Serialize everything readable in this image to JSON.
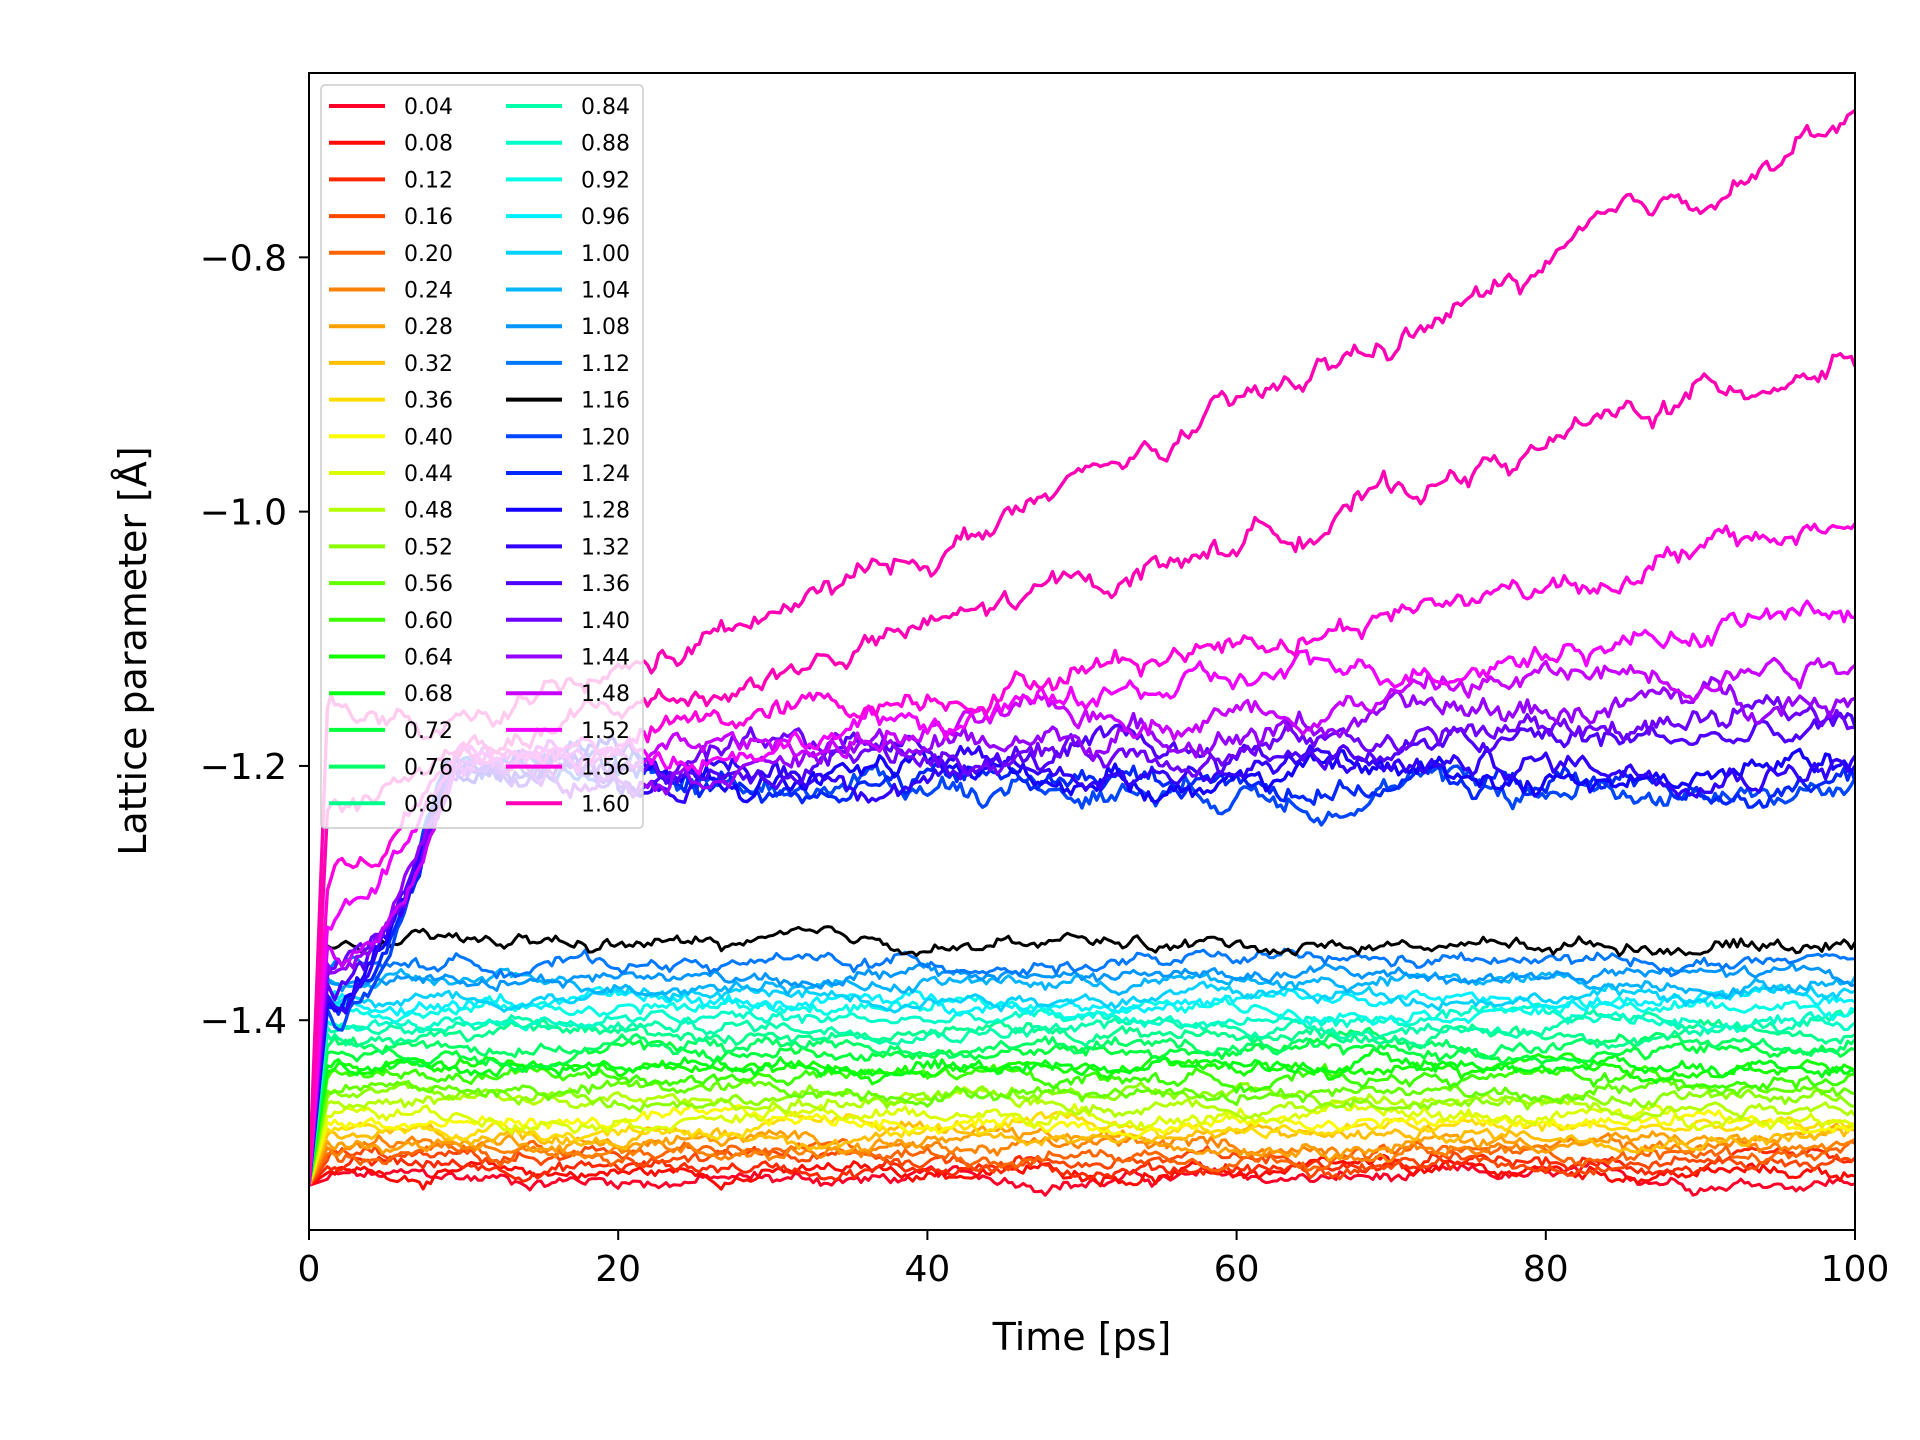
{
  "chart_data": {
    "type": "line",
    "title": "",
    "xlabel": "Time [ps]",
    "ylabel": "Lattice parameter [Å]",
    "xlim": [
      0,
      100
    ],
    "ylim": [
      -1.565,
      -0.655
    ],
    "xticks": [
      0,
      20,
      40,
      60,
      80,
      100
    ],
    "xtick_labels": [
      "0",
      "20",
      "40",
      "60",
      "80",
      "100"
    ],
    "yticks": [
      -1.4,
      -1.2,
      -1.0,
      -0.8
    ],
    "ytick_labels": [
      "−1.4",
      "−1.2",
      "−1.0",
      "−0.8"
    ],
    "grid": false,
    "legend_position": "top-left",
    "legend_columns": 2,
    "series": [
      {
        "name": "0.04",
        "color": "#ff0028",
        "y_start": -1.53,
        "y_end": -1.525
      },
      {
        "name": "0.08",
        "color": "#ff0a00",
        "y_start": -1.53,
        "y_end": -1.52
      },
      {
        "name": "0.12",
        "color": "#ff2800",
        "y_start": -1.53,
        "y_end": -1.515
      },
      {
        "name": "0.16",
        "color": "#ff4600",
        "y_start": -1.53,
        "y_end": -1.51
      },
      {
        "name": "0.20",
        "color": "#ff6400",
        "y_start": -1.53,
        "y_end": -1.505
      },
      {
        "name": "0.24",
        "color": "#ff8200",
        "y_start": -1.53,
        "y_end": -1.5
      },
      {
        "name": "0.28",
        "color": "#ffa000",
        "y_start": -1.53,
        "y_end": -1.495
      },
      {
        "name": "0.32",
        "color": "#ffbe00",
        "y_start": -1.53,
        "y_end": -1.49
      },
      {
        "name": "0.36",
        "color": "#ffdc00",
        "y_start": -1.53,
        "y_end": -1.485
      },
      {
        "name": "0.40",
        "color": "#fafa00",
        "y_start": -1.53,
        "y_end": -1.48
      },
      {
        "name": "0.44",
        "color": "#dcff00",
        "y_start": -1.53,
        "y_end": -1.475
      },
      {
        "name": "0.48",
        "color": "#b4ff00",
        "y_start": -1.53,
        "y_end": -1.465
      },
      {
        "name": "0.52",
        "color": "#8cff00",
        "y_start": -1.53,
        "y_end": -1.46
      },
      {
        "name": "0.56",
        "color": "#64ff00",
        "y_start": -1.53,
        "y_end": -1.455
      },
      {
        "name": "0.60",
        "color": "#3cff00",
        "y_start": -1.53,
        "y_end": -1.445
      },
      {
        "name": "0.64",
        "color": "#14ff00",
        "y_start": -1.53,
        "y_end": -1.44
      },
      {
        "name": "0.68",
        "color": "#00ff14",
        "y_start": -1.53,
        "y_end": -1.435
      },
      {
        "name": "0.72",
        "color": "#00ff3c",
        "y_start": -1.53,
        "y_end": -1.425
      },
      {
        "name": "0.76",
        "color": "#00ff64",
        "y_start": -1.53,
        "y_end": -1.42
      },
      {
        "name": "0.80",
        "color": "#00ff8c",
        "y_start": -1.53,
        "y_end": -1.41
      },
      {
        "name": "0.84",
        "color": "#00ffa8",
        "y_start": -1.53,
        "y_end": -1.405
      },
      {
        "name": "0.88",
        "color": "#00ffc8",
        "y_start": -1.53,
        "y_end": -1.4
      },
      {
        "name": "0.92",
        "color": "#00ffe6",
        "y_start": -1.53,
        "y_end": -1.39
      },
      {
        "name": "0.96",
        "color": "#00f0ff",
        "y_start": -1.53,
        "y_end": -1.385
      },
      {
        "name": "1.00",
        "color": "#00d2ff",
        "y_start": -1.53,
        "y_end": -1.38
      },
      {
        "name": "1.04",
        "color": "#00b4ff",
        "y_start": -1.53,
        "y_end": -1.37
      },
      {
        "name": "1.08",
        "color": "#0096ff",
        "y_start": -1.53,
        "y_end": -1.365
      },
      {
        "name": "1.12",
        "color": "#0078ff",
        "y_start": -1.53,
        "y_end": -1.355
      },
      {
        "name": "1.16",
        "color": "#000000",
        "y_start": -1.53,
        "y_end": -1.34
      },
      {
        "name": "1.20",
        "color": "#0046ff",
        "y_start": -1.53,
        "y_end": -1.22
      },
      {
        "name": "1.24",
        "color": "#0028ff",
        "y_start": -1.53,
        "y_end": -1.215
      },
      {
        "name": "1.28",
        "color": "#1400ff",
        "y_start": -1.53,
        "y_end": -1.205
      },
      {
        "name": "1.32",
        "color": "#3200ff",
        "y_start": -1.53,
        "y_end": -1.195
      },
      {
        "name": "1.36",
        "color": "#5000ff",
        "y_start": -1.53,
        "y_end": -1.175
      },
      {
        "name": "1.40",
        "color": "#6e00ff",
        "y_start": -1.53,
        "y_end": -1.16
      },
      {
        "name": "1.44",
        "color": "#9600ff",
        "y_start": -1.53,
        "y_end": -1.14
      },
      {
        "name": "1.48",
        "color": "#c800ff",
        "y_start": -1.53,
        "y_end": -1.11
      },
      {
        "name": "1.52",
        "color": "#f000ff",
        "y_start": -1.53,
        "y_end": -1.075
      },
      {
        "name": "1.56",
        "color": "#ff00dc",
        "y_start": -1.53,
        "y_end": -1.01
      },
      {
        "name": "1.60",
        "color": "#ff00b4",
        "y_start": -1.53,
        "y_end": -0.87
      }
    ],
    "top_series": {
      "name": "1.60+",
      "color": "#ff00b4",
      "y_start": -1.53,
      "y_end": -0.69
    }
  }
}
